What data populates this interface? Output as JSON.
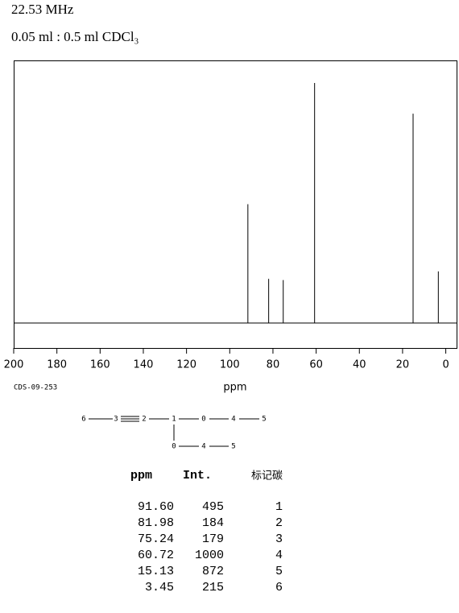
{
  "header": {
    "frequency": "22.53 MHz",
    "sample": "0.05 ml : 0.5 ml CDCl₃"
  },
  "chart_data": {
    "type": "stem",
    "x": [
      91.6,
      81.98,
      75.24,
      60.72,
      15.13,
      3.45
    ],
    "values": [
      495,
      184,
      179,
      1000,
      872,
      215
    ],
    "xlim": [
      200,
      -5
    ],
    "xticks": [
      200,
      180,
      160,
      140,
      120,
      100,
      80,
      60,
      40,
      20,
      0
    ],
    "ylim": [
      0,
      1000
    ],
    "xlabel": "ppm",
    "color": "#000000"
  },
  "code": "CDS-09-253",
  "structure": {
    "nodes": [
      {
        "label": "6"
      },
      {
        "label": "3"
      },
      {
        "label": "2"
      },
      {
        "label": "1"
      },
      {
        "label": "0"
      },
      {
        "label": "4"
      },
      {
        "label": "5"
      },
      {
        "label": "0"
      },
      {
        "label": "4"
      },
      {
        "label": "5"
      }
    ]
  },
  "table": {
    "columns": [
      "ppm",
      "Int.",
      "标记碳"
    ],
    "rows": [
      [
        "91.60",
        "495",
        "1"
      ],
      [
        "81.98",
        "184",
        "2"
      ],
      [
        "75.24",
        "179",
        "3"
      ],
      [
        "60.72",
        "1000",
        "4"
      ],
      [
        "15.13",
        "872",
        "5"
      ],
      [
        "3.45",
        "215",
        "6"
      ]
    ]
  }
}
